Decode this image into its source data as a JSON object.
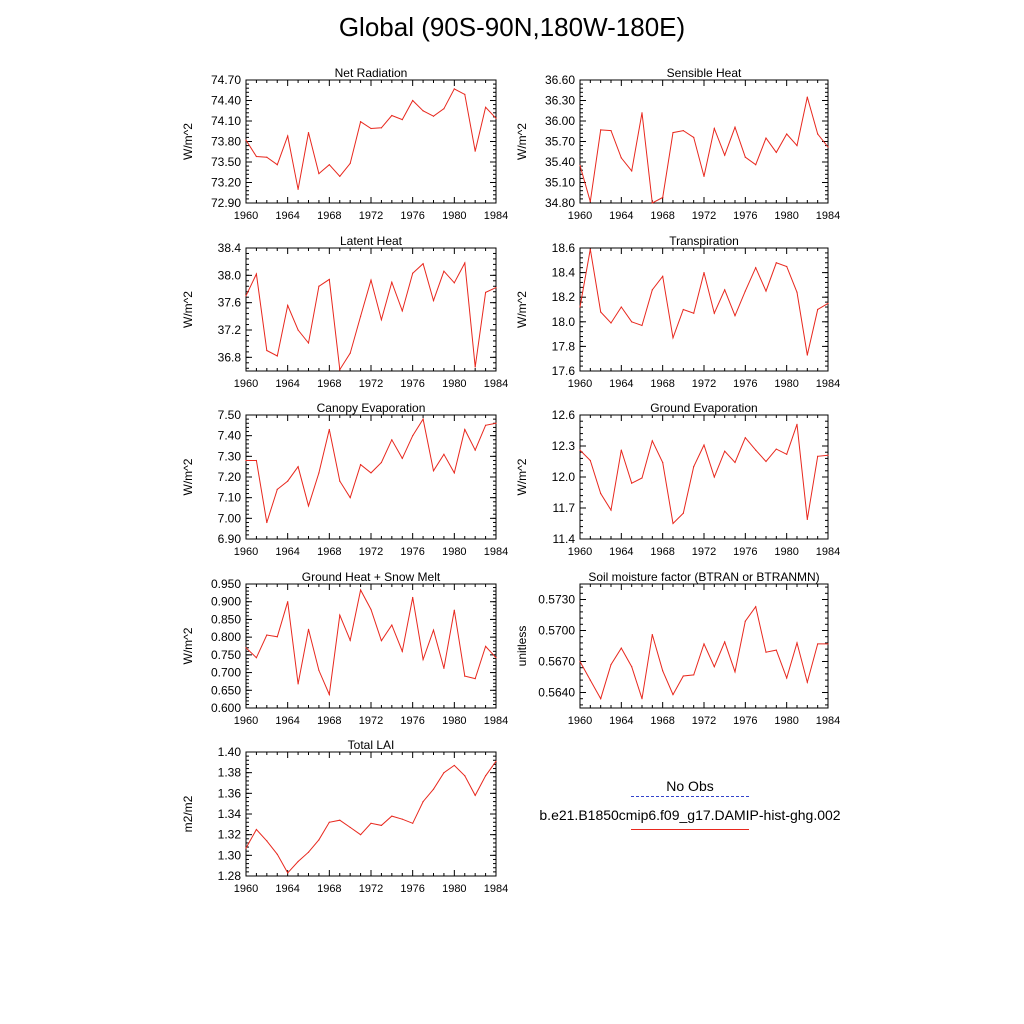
{
  "title": "Global (90S-90N,180W-180E)",
  "legend": {
    "obs_label": "No Obs",
    "obs_color": "#3344cc",
    "model_label": "b.e21.B1850cmip6.f09_g17.DAMIP-hist-ghg.002",
    "model_color": "#e8281e"
  },
  "chart_data": [
    {
      "type": "line",
      "title": "Net Radiation",
      "ylabel": "W/m^2",
      "xlim": [
        1960,
        1984
      ],
      "ylim": [
        72.9,
        74.7
      ],
      "yticks": [
        "72.90",
        "73.20",
        "73.50",
        "73.80",
        "74.10",
        "74.40",
        "74.70"
      ],
      "xticks": [
        "1960",
        "1964",
        "1968",
        "1972",
        "1976",
        "1980",
        "1984"
      ],
      "x": [
        1960,
        1961,
        1962,
        1963,
        1964,
        1965,
        1966,
        1967,
        1968,
        1969,
        1970,
        1971,
        1972,
        1973,
        1974,
        1975,
        1976,
        1977,
        1978,
        1979,
        1980,
        1981,
        1982,
        1983,
        1984
      ],
      "series": [
        {
          "name": "b.e21.B1850cmip6.f09_g17.DAMIP-hist-ghg.002",
          "values": [
            73.82,
            73.58,
            73.57,
            73.46,
            73.88,
            73.1,
            73.93,
            73.33,
            73.46,
            73.29,
            73.48,
            74.09,
            73.99,
            74.0,
            74.18,
            74.12,
            74.4,
            74.25,
            74.17,
            74.28,
            74.57,
            74.49,
            73.66,
            74.3,
            74.14
          ]
        }
      ]
    },
    {
      "type": "line",
      "title": "Sensible Heat",
      "ylabel": "W/m^2",
      "xlim": [
        1960,
        1984
      ],
      "ylim": [
        34.8,
        36.6
      ],
      "yticks": [
        "34.80",
        "35.10",
        "35.40",
        "35.70",
        "36.00",
        "36.30",
        "36.60"
      ],
      "xticks": [
        "1960",
        "1964",
        "1968",
        "1972",
        "1976",
        "1980",
        "1984"
      ],
      "x": [
        1960,
        1961,
        1962,
        1963,
        1964,
        1965,
        1966,
        1967,
        1968,
        1969,
        1970,
        1971,
        1972,
        1973,
        1974,
        1975,
        1976,
        1977,
        1978,
        1979,
        1980,
        1981,
        1982,
        1983,
        1984
      ],
      "series": [
        {
          "name": "b.e21.B1850cmip6.f09_g17.DAMIP-hist-ghg.002",
          "values": [
            35.35,
            34.82,
            35.87,
            35.86,
            35.46,
            35.27,
            36.12,
            34.8,
            34.88,
            35.83,
            35.86,
            35.76,
            35.19,
            35.89,
            35.5,
            35.91,
            35.47,
            35.36,
            35.75,
            35.54,
            35.81,
            35.64,
            36.35,
            35.81,
            35.62
          ]
        }
      ]
    },
    {
      "type": "line",
      "title": "Latent Heat",
      "ylabel": "W/m^2",
      "xlim": [
        1960,
        1984
      ],
      "ylim": [
        36.6,
        38.4
      ],
      "yticks": [
        "36.8",
        "37.2",
        "37.6",
        "38.0",
        "38.4"
      ],
      "xticks": [
        "1960",
        "1964",
        "1968",
        "1972",
        "1976",
        "1980",
        "1984"
      ],
      "x": [
        1960,
        1961,
        1962,
        1963,
        1964,
        1965,
        1966,
        1967,
        1968,
        1969,
        1970,
        1971,
        1972,
        1973,
        1974,
        1975,
        1976,
        1977,
        1978,
        1979,
        1980,
        1981,
        1982,
        1983,
        1984
      ],
      "series": [
        {
          "name": "b.e21.B1850cmip6.f09_g17.DAMIP-hist-ghg.002",
          "values": [
            37.7,
            38.02,
            36.9,
            36.82,
            37.56,
            37.2,
            37.01,
            37.84,
            37.94,
            36.62,
            36.86,
            37.4,
            37.93,
            37.35,
            37.9,
            37.48,
            38.03,
            38.17,
            37.63,
            38.06,
            37.89,
            38.18,
            36.66,
            37.75,
            37.82
          ]
        }
      ]
    },
    {
      "type": "line",
      "title": "Transpiration",
      "ylabel": "W/m^2",
      "xlim": [
        1960,
        1984
      ],
      "ylim": [
        17.6,
        18.6
      ],
      "yticks": [
        "17.6",
        "17.8",
        "18.0",
        "18.2",
        "18.4",
        "18.6"
      ],
      "xticks": [
        "1960",
        "1964",
        "1968",
        "1972",
        "1976",
        "1980",
        "1984"
      ],
      "x": [
        1960,
        1961,
        1962,
        1963,
        1964,
        1965,
        1966,
        1967,
        1968,
        1969,
        1970,
        1971,
        1972,
        1973,
        1974,
        1975,
        1976,
        1977,
        1978,
        1979,
        1980,
        1981,
        1982,
        1983,
        1984
      ],
      "series": [
        {
          "name": "b.e21.B1850cmip6.f09_g17.DAMIP-hist-ghg.002",
          "values": [
            18.12,
            18.59,
            18.08,
            17.99,
            18.12,
            18.0,
            17.97,
            18.26,
            18.37,
            17.87,
            18.1,
            18.07,
            18.4,
            18.07,
            18.26,
            18.05,
            18.25,
            18.44,
            18.25,
            18.48,
            18.45,
            18.24,
            17.73,
            18.1,
            18.15
          ]
        }
      ]
    },
    {
      "type": "line",
      "title": "Canopy Evaporation",
      "ylabel": "W/m^2",
      "xlim": [
        1960,
        1984
      ],
      "ylim": [
        6.9,
        7.5
      ],
      "yticks": [
        "6.90",
        "7.00",
        "7.10",
        "7.20",
        "7.30",
        "7.40",
        "7.50"
      ],
      "xticks": [
        "1960",
        "1964",
        "1968",
        "1972",
        "1976",
        "1980",
        "1984"
      ],
      "x": [
        1960,
        1961,
        1962,
        1963,
        1964,
        1965,
        1966,
        1967,
        1968,
        1969,
        1970,
        1971,
        1972,
        1973,
        1974,
        1975,
        1976,
        1977,
        1978,
        1979,
        1980,
        1981,
        1982,
        1983,
        1984
      ],
      "series": [
        {
          "name": "b.e21.B1850cmip6.f09_g17.DAMIP-hist-ghg.002",
          "values": [
            7.28,
            7.28,
            6.98,
            7.14,
            7.18,
            7.25,
            7.06,
            7.22,
            7.43,
            7.18,
            7.1,
            7.26,
            7.22,
            7.27,
            7.38,
            7.29,
            7.4,
            7.48,
            7.23,
            7.31,
            7.22,
            7.43,
            7.33,
            7.45,
            7.46
          ]
        }
      ]
    },
    {
      "type": "line",
      "title": "Ground Evaporation",
      "ylabel": "W/m^2",
      "xlim": [
        1960,
        1984
      ],
      "ylim": [
        11.4,
        12.6
      ],
      "yticks": [
        "11.4",
        "11.7",
        "12.0",
        "12.3",
        "12.6"
      ],
      "xticks": [
        "1960",
        "1964",
        "1968",
        "1972",
        "1976",
        "1980",
        "1984"
      ],
      "x": [
        1960,
        1961,
        1962,
        1963,
        1964,
        1965,
        1966,
        1967,
        1968,
        1969,
        1970,
        1971,
        1972,
        1973,
        1974,
        1975,
        1976,
        1977,
        1978,
        1979,
        1980,
        1981,
        1982,
        1983,
        1984
      ],
      "series": [
        {
          "name": "b.e21.B1850cmip6.f09_g17.DAMIP-hist-ghg.002",
          "values": [
            12.26,
            12.16,
            11.84,
            11.68,
            12.26,
            11.94,
            11.99,
            12.35,
            12.14,
            11.55,
            11.65,
            12.1,
            12.31,
            12.0,
            12.25,
            12.14,
            12.38,
            12.26,
            12.15,
            12.27,
            12.22,
            12.51,
            11.59,
            12.2,
            12.21
          ]
        }
      ]
    },
    {
      "type": "line",
      "title": "Ground Heat + Snow Melt",
      "ylabel": "W/m^2",
      "xlim": [
        1960,
        1984
      ],
      "ylim": [
        0.6,
        0.95
      ],
      "yticks": [
        "0.600",
        "0.650",
        "0.700",
        "0.750",
        "0.800",
        "0.850",
        "0.900",
        "0.950"
      ],
      "xticks": [
        "1960",
        "1964",
        "1968",
        "1972",
        "1976",
        "1980",
        "1984"
      ],
      "x": [
        1960,
        1961,
        1962,
        1963,
        1964,
        1965,
        1966,
        1967,
        1968,
        1969,
        1970,
        1971,
        1972,
        1973,
        1974,
        1975,
        1976,
        1977,
        1978,
        1979,
        1980,
        1981,
        1982,
        1983,
        1984
      ],
      "series": [
        {
          "name": "b.e21.B1850cmip6.f09_g17.DAMIP-hist-ghg.002",
          "values": [
            0.77,
            0.742,
            0.806,
            0.801,
            0.9,
            0.668,
            0.822,
            0.706,
            0.638,
            0.862,
            0.791,
            0.933,
            0.878,
            0.79,
            0.834,
            0.76,
            0.912,
            0.737,
            0.82,
            0.712,
            0.876,
            0.69,
            0.683,
            0.774,
            0.742
          ]
        }
      ]
    },
    {
      "type": "line",
      "title": "Soil moisture factor (BTRAN or BTRANMN)",
      "ylabel": "unitless",
      "xlim": [
        1960,
        1984
      ],
      "ylim": [
        0.5625,
        0.5745
      ],
      "yticks": [
        "0.5640",
        "0.5670",
        "0.5700",
        "0.5730"
      ],
      "xticks": [
        "1960",
        "1964",
        "1968",
        "1972",
        "1976",
        "1980",
        "1984"
      ],
      "x": [
        1960,
        1961,
        1962,
        1963,
        1964,
        1965,
        1966,
        1967,
        1968,
        1969,
        1970,
        1971,
        1972,
        1973,
        1974,
        1975,
        1976,
        1977,
        1978,
        1979,
        1980,
        1981,
        1982,
        1983,
        1984
      ],
      "series": [
        {
          "name": "b.e21.B1850cmip6.f09_g17.DAMIP-hist-ghg.002",
          "values": [
            0.567,
            0.5652,
            0.5634,
            0.5667,
            0.5683,
            0.5665,
            0.5634,
            0.5696,
            0.5661,
            0.5638,
            0.5656,
            0.5657,
            0.5687,
            0.5665,
            0.5689,
            0.566,
            0.5709,
            0.5723,
            0.5679,
            0.5681,
            0.5654,
            0.5688,
            0.565,
            0.5687,
            0.5687
          ]
        }
      ]
    },
    {
      "type": "line",
      "title": "Total LAI",
      "ylabel": "m2/m2",
      "xlim": [
        1960,
        1984
      ],
      "ylim": [
        1.28,
        1.4
      ],
      "yticks": [
        "1.28",
        "1.30",
        "1.32",
        "1.34",
        "1.36",
        "1.38",
        "1.40"
      ],
      "xticks": [
        "1960",
        "1964",
        "1968",
        "1972",
        "1976",
        "1980",
        "1984"
      ],
      "x": [
        1960,
        1961,
        1962,
        1963,
        1964,
        1965,
        1966,
        1967,
        1968,
        1969,
        1970,
        1971,
        1972,
        1973,
        1974,
        1975,
        1976,
        1977,
        1978,
        1979,
        1980,
        1981,
        1982,
        1983,
        1984
      ],
      "series": [
        {
          "name": "b.e21.B1850cmip6.f09_g17.DAMIP-hist-ghg.002",
          "values": [
            1.307,
            1.325,
            1.314,
            1.301,
            1.283,
            1.294,
            1.303,
            1.315,
            1.332,
            1.334,
            1.327,
            1.32,
            1.331,
            1.329,
            1.338,
            1.335,
            1.331,
            1.352,
            1.364,
            1.38,
            1.387,
            1.377,
            1.358,
            1.377,
            1.391
          ]
        }
      ]
    }
  ]
}
